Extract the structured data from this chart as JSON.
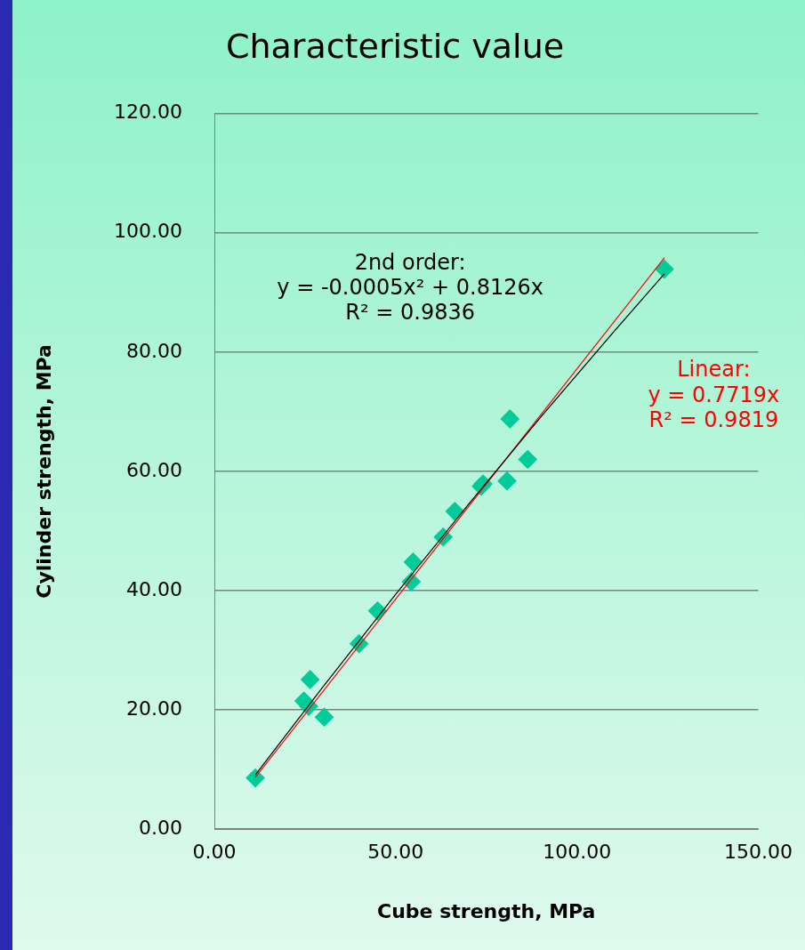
{
  "chart_data": {
    "type": "scatter",
    "title": "Characteristic value",
    "xlabel": "Cube strength, MPa",
    "ylabel": "Cylinder strength, MPa",
    "xlim": [
      0,
      150
    ],
    "xticks": [
      {
        "value": 0,
        "label": "0.00"
      },
      {
        "value": 50,
        "label": "50.00"
      },
      {
        "value": 100,
        "label": "100.00"
      },
      {
        "value": 150,
        "label": "150.00"
      }
    ],
    "ylim": [
      0,
      120
    ],
    "yticks": [
      {
        "value": 0,
        "label": "0.00"
      },
      {
        "value": 20,
        "label": "20.00"
      },
      {
        "value": 40,
        "label": "40.00"
      },
      {
        "value": 60,
        "label": "60.00"
      },
      {
        "value": 80,
        "label": "80.00"
      },
      {
        "value": 100,
        "label": "100.00"
      },
      {
        "value": 120,
        "label": "120.00"
      }
    ],
    "grid": "y",
    "legend": false,
    "marker": "diamond",
    "series": [
      {
        "type": "scatter",
        "color": "#00cc99",
        "x": [
          11.3,
          24.7,
          26.4,
          26.0,
          30.3,
          39.9,
          45.0,
          54.3,
          54.8,
          63.1,
          66.3,
          73.6,
          74.1,
          80.7,
          81.5,
          86.4,
          124.1
        ],
        "values": [
          8.6,
          21.5,
          25.1,
          20.6,
          18.8,
          31.1,
          36.6,
          41.5,
          44.8,
          49.0,
          53.3,
          57.5,
          57.9,
          58.4,
          68.8,
          62.0,
          93.9
        ]
      },
      {
        "type": "line",
        "color": "#000000",
        "marker": "none",
        "x": [
          11.3,
          30,
          50,
          70,
          90,
          110,
          124.1
        ],
        "values": [
          9.1,
          23.9,
          39.4,
          54.4,
          69.1,
          83.3,
          93.1
        ]
      },
      {
        "type": "line",
        "color": "#ff0000",
        "marker": "none",
        "x": [
          11.3,
          124.1
        ],
        "values": [
          8.7,
          95.8
        ]
      }
    ],
    "annotations": [
      "2nd order:",
      "y = -0.0005x² + 0.8126x",
      "R² = 0.9836",
      "Linear:",
      "y = 0.7719x",
      "R² = 0.9819"
    ]
  }
}
